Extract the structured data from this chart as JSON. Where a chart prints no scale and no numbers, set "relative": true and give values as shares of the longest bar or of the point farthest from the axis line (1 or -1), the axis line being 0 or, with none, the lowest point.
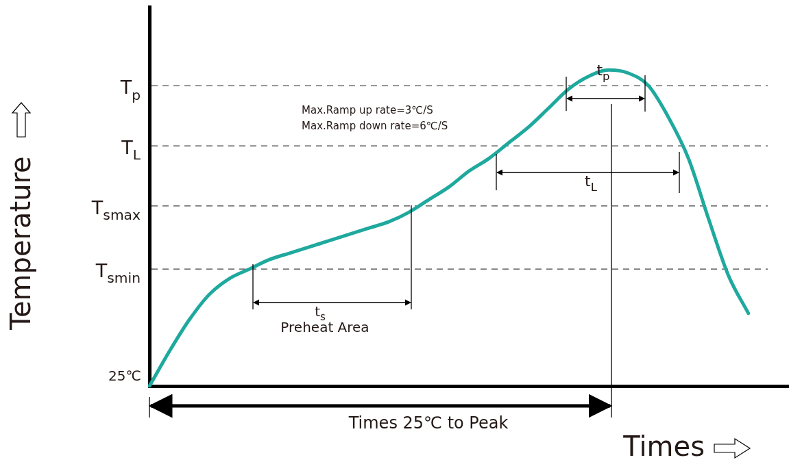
{
  "chart_data": {
    "type": "line",
    "relative": true,
    "xlabel": "Times",
    "ylabel": "Temperature",
    "categories": [
      null,
      null,
      null,
      null,
      null,
      null,
      null,
      null,
      null,
      null,
      null,
      null,
      null,
      null,
      null,
      null,
      null,
      null,
      null,
      null,
      null,
      null,
      null,
      null,
      null,
      null,
      null,
      null,
      null,
      null,
      null,
      null,
      null
    ],
    "series": [
      {
        "color": "#1fa99e",
        "values": [
          0,
          0.11,
          0.21,
          0.29,
          0.34,
          0.37,
          0.4,
          0.42,
          0.44,
          0.46,
          0.48,
          0.5,
          0.52,
          0.55,
          0.59,
          0.63,
          0.68,
          0.72,
          0.77,
          0.82,
          0.88,
          0.94,
          0.98,
          1,
          0.99,
          0.95,
          0.85,
          0.72,
          0.53,
          0.35,
          0.23,
          null,
          null
        ]
      }
    ],
    "ref_lines": [
      {
        "axis": "y",
        "value": 0.95,
        "label": "T$_{p}$",
        "line_style": "dashed",
        "color": "#444444"
      },
      {
        "axis": "y",
        "value": 0.76,
        "label": "T$_{L}$",
        "line_style": "dashed",
        "color": "#444444"
      },
      {
        "axis": "y",
        "value": 0.57,
        "label": "T$_{smax}$",
        "line_style": "dashed",
        "color": "#444444"
      },
      {
        "axis": "y",
        "value": 0.37,
        "label": "T$_{smin}$",
        "line_style": "dashed",
        "color": "#444444"
      }
    ],
    "annotations": [
      "25℃",
      "Max.Ramp up rate=3℃/S",
      "Max.Ramp down rate=6℃/S",
      "t$_{p}$",
      "t$_{L}$",
      "t$_{s}$",
      "Preheat Area",
      "Times 25℃ to Peak"
    ],
    "legend": false,
    "grid": false,
    "marker": "none",
    "line_style": "solid"
  }
}
